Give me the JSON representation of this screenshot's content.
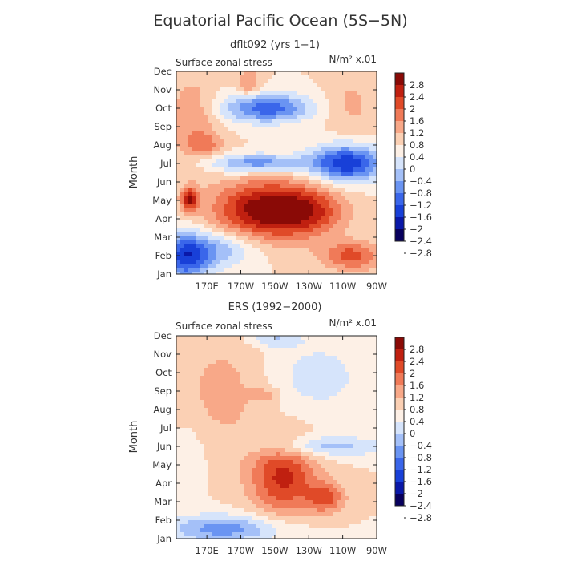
{
  "figure": {
    "title": "Equatorial Pacific Ocean (5S−5N)",
    "colors": [
      "#08005e",
      "#0a18a8",
      "#1840d8",
      "#3a66ea",
      "#6a94f2",
      "#a4c0f8",
      "#d6e4fb",
      "#fdf0e6",
      "#fbd0b4",
      "#f8a888",
      "#f07a58",
      "#e04a28",
      "#c02010",
      "#8a0a06"
    ],
    "color_boundaries": [
      -2.8,
      -2.4,
      -2,
      -1.6,
      -1.2,
      -0.8,
      -0.4,
      0,
      0.4,
      0.8,
      1.2,
      1.6,
      2,
      2.4,
      2.8
    ]
  },
  "chart_data": [
    {
      "type": "heatmap",
      "subtitle": "dflt092 (yrs 1−1)",
      "inner_label": "Surface zonal stress",
      "units_label": "N/m² x.01",
      "ylabel": "Month",
      "xlabel": "",
      "x_ticks": [
        "170E",
        "170W",
        "150W",
        "130W",
        "110W",
        "90W"
      ],
      "x_tick_values": [
        170,
        190,
        210,
        230,
        250,
        270
      ],
      "xlim": [
        152,
        270
      ],
      "y_ticks": [
        "Jan",
        "Feb",
        "Mar",
        "Apr",
        "May",
        "Jun",
        "Jul",
        "Aug",
        "Sep",
        "Oct",
        "Nov",
        "Dec"
      ],
      "ylim": [
        0,
        11
      ],
      "colorbar_labels": [
        "2.8",
        "2.4",
        "2",
        "1.6",
        "1.2",
        "0.8",
        "0.4",
        "0",
        "−0.4",
        "−0.8",
        "−1.2",
        "−1.6",
        "−2",
        "−2.4",
        "−2.8"
      ],
      "features": [
        {
          "lon": 206,
          "month": 3.5,
          "amp": 2.4,
          "sx": 22,
          "sy": 1.1
        },
        {
          "lon": 232,
          "month": 3.4,
          "amp": 0.9,
          "sx": 14,
          "sy": 0.9
        },
        {
          "lon": 160,
          "month": 4.1,
          "amp": 1.9,
          "sx": 3.5,
          "sy": 0.45
        },
        {
          "lon": 255,
          "month": 1.0,
          "amp": 1.4,
          "sx": 12,
          "sy": 0.55
        },
        {
          "lon": 158,
          "month": 1.0,
          "amp": -2.2,
          "sx": 10,
          "sy": 0.9
        },
        {
          "lon": 180,
          "month": 1.4,
          "amp": -1.0,
          "sx": 14,
          "sy": 0.7
        },
        {
          "lon": 200,
          "month": 6.0,
          "amp": -1.5,
          "sx": 20,
          "sy": 0.35
        },
        {
          "lon": 252,
          "month": 6.0,
          "amp": -2.3,
          "sx": 15,
          "sy": 0.7
        },
        {
          "lon": 205,
          "month": 9.0,
          "amp": -1.9,
          "sx": 18,
          "sy": 0.55
        },
        {
          "lon": 162,
          "month": 8.3,
          "amp": 0.8,
          "sx": 10,
          "sy": 1.6
        },
        {
          "lon": 170,
          "month": 7.0,
          "amp": 0.7,
          "sx": 7,
          "sy": 0.4
        },
        {
          "lon": 195,
          "month": 10.3,
          "amp": 0.8,
          "sx": 5,
          "sy": 0.6
        },
        {
          "lon": 255,
          "month": 9.2,
          "amp": 0.5,
          "sx": 10,
          "sy": 1.2
        }
      ]
    },
    {
      "type": "heatmap",
      "subtitle": "ERS (1992−2000)",
      "inner_label": "Surface zonal stress",
      "units_label": "N/m² x.01",
      "ylabel": "Month",
      "xlabel": "",
      "x_ticks": [
        "170E",
        "170W",
        "150W",
        "130W",
        "110W",
        "90W"
      ],
      "x_tick_values": [
        170,
        190,
        210,
        230,
        250,
        270
      ],
      "xlim": [
        152,
        270
      ],
      "y_ticks": [
        "Jan",
        "Feb",
        "Mar",
        "Apr",
        "May",
        "Jun",
        "Jul",
        "Aug",
        "Sep",
        "Oct",
        "Nov",
        "Dec"
      ],
      "ylim": [
        0,
        11
      ],
      "colorbar_labels": [
        "2.8",
        "2.4",
        "2",
        "1.6",
        "1.2",
        "0.8",
        "0.4",
        "0",
        "−0.4",
        "−0.8",
        "−1.2",
        "−1.6",
        "−2",
        "−2.4",
        "−2.8"
      ],
      "features": [
        {
          "lon": 180,
          "month": 0.5,
          "amp": -1.4,
          "sx": 25,
          "sy": 0.55
        },
        {
          "lon": 215,
          "month": 3.3,
          "amp": 1.7,
          "sx": 14,
          "sy": 1.4
        },
        {
          "lon": 240,
          "month": 2.2,
          "amp": 1.2,
          "sx": 8,
          "sy": 0.6
        },
        {
          "lon": 240,
          "month": 5.0,
          "amp": -1.0,
          "sx": 25,
          "sy": 0.4
        },
        {
          "lon": 235,
          "month": 8.8,
          "amp": -0.6,
          "sx": 20,
          "sy": 1.4
        },
        {
          "lon": 180,
          "month": 8.0,
          "amp": 0.55,
          "sx": 18,
          "sy": 2.2
        },
        {
          "lon": 160,
          "month": 4.5,
          "amp": -0.3,
          "sx": 7,
          "sy": 1.5
        },
        {
          "lon": 210,
          "month": 10.8,
          "amp": -0.8,
          "sx": 10,
          "sy": 0.3
        },
        {
          "lon": 205,
          "month": 7.8,
          "amp": 0.5,
          "sx": 6,
          "sy": 0.3
        }
      ]
    }
  ]
}
